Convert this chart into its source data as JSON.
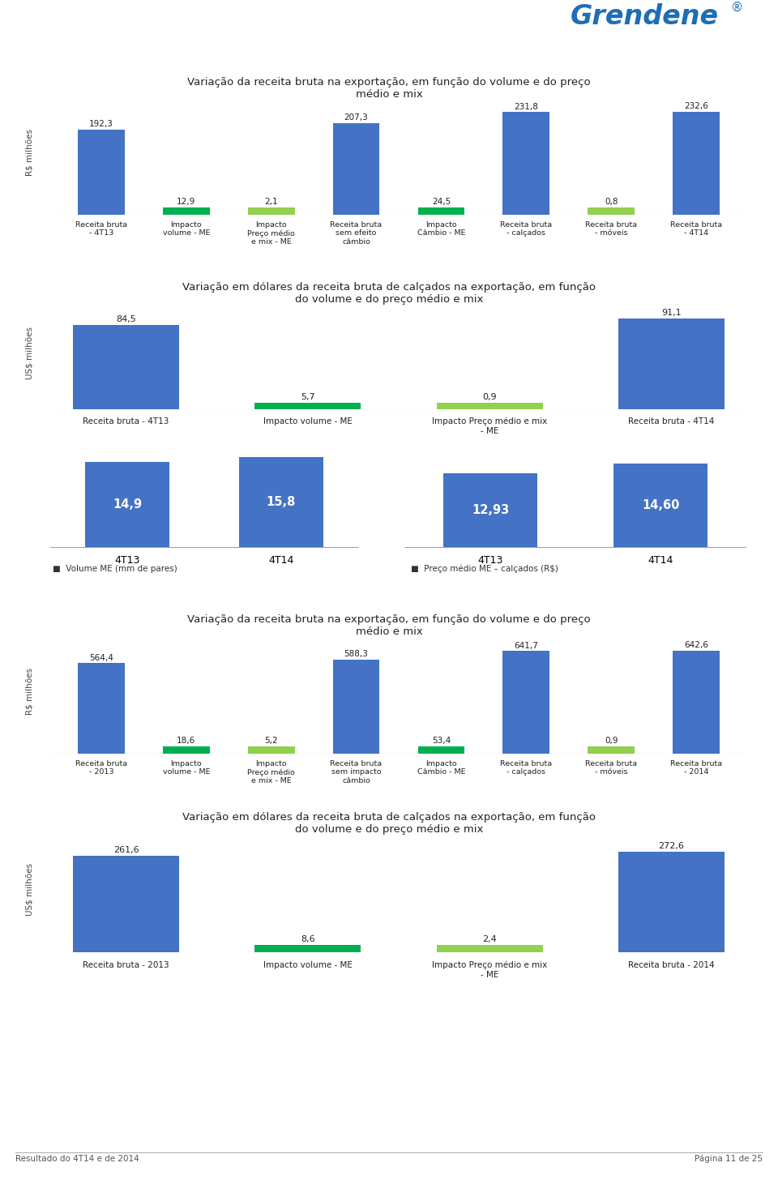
{
  "header_bar_color": "#1f6db5",
  "bg_color": "#ffffff",
  "bar_blue": "#4472c4",
  "bar_green": "#00b050",
  "bar_light_green": "#92d050",
  "chart1": {
    "title": "Variação da receita bruta na exportação, em função do volume e do preço\nmédio e mix",
    "ylabel": "R$ milhões",
    "categories": [
      "Receita bruta\n- 4T13",
      "Impacto\nvolume - ME",
      "Impacto\nPreço médio\ne mix - ME",
      "Receita bruta\nsem efeito\ncâmbio",
      "Impacto\nCâmbio - ME",
      "Receita bruta\n- calçados",
      "Receita bruta\n- móveis",
      "Receita bruta\n- 4T14"
    ],
    "values": [
      192.3,
      12.9,
      2.1,
      207.3,
      24.5,
      231.8,
      0.8,
      232.6
    ],
    "bar_types": [
      "blue",
      "green",
      "light_green",
      "blue",
      "green",
      "blue",
      "light_green",
      "blue"
    ],
    "labels": [
      "192,3",
      "12,9",
      "2,1",
      "207,3",
      "24,5",
      "231,8",
      "0,8",
      "232,6"
    ]
  },
  "chart2": {
    "title": "Variação em dólares da receita bruta de calçados na exportação, em função\ndo volume e do preço médio e mix",
    "ylabel": "US$ milhões",
    "categories": [
      "Receita bruta - 4T13",
      "Impacto volume - ME",
      "Impacto Preço médio e mix\n- ME",
      "Receita bruta - 4T14"
    ],
    "values": [
      84.5,
      5.7,
      0.9,
      91.1
    ],
    "bar_types": [
      "blue",
      "green",
      "light_green",
      "blue"
    ],
    "labels": [
      "84,5",
      "5,7",
      "0,9",
      "91,1"
    ]
  },
  "chart3_left": {
    "categories": [
      "4T13",
      "4T14"
    ],
    "values": [
      14.9,
      15.8
    ],
    "labels": [
      "14,9",
      "15,8"
    ],
    "legend": "Volume ME (mm de pares)"
  },
  "chart3_right": {
    "categories": [
      "4T13",
      "4T14"
    ],
    "values": [
      12.93,
      14.6
    ],
    "labels": [
      "12,93",
      "14,60"
    ],
    "legend": "Preço médio ME – calçados (R$)"
  },
  "chart4": {
    "title": "Variação da receita bruta na exportação, em função do volume e do preço\nmédio e mix",
    "ylabel": "R$ milhões",
    "categories": [
      "Receita bruta\n- 2013",
      "Impacto\nvolume - ME",
      "Impacto\nPreço médio\ne mix - ME",
      "Receita bruta\nsem impacto\ncâmbio",
      "Impacto\nCâmbio - ME",
      "Receita bruta\n- calçados",
      "Receita bruta\n- móveis",
      "Receita bruta\n- 2014"
    ],
    "values": [
      564.4,
      18.6,
      5.2,
      588.3,
      53.4,
      641.7,
      0.9,
      642.6
    ],
    "bar_types": [
      "blue",
      "green",
      "light_green",
      "blue",
      "green",
      "blue",
      "light_green",
      "blue"
    ],
    "labels": [
      "564,4",
      "18,6",
      "5,2",
      "588,3",
      "53,4",
      "641,7",
      "0,9",
      "642,6"
    ]
  },
  "chart5": {
    "title": "Variação em dólares da receita bruta de calçados na exportação, em função\ndo volume e do preço médio e mix",
    "ylabel": "US$ milhões",
    "categories": [
      "Receita bruta - 2013",
      "Impacto volume - ME",
      "Impacto Preço médio e mix\n- ME",
      "Receita bruta - 2014"
    ],
    "values": [
      261.6,
      8.6,
      2.4,
      272.6
    ],
    "bar_types": [
      "blue",
      "green",
      "light_green",
      "blue"
    ],
    "labels": [
      "261,6",
      "8,6",
      "2,4",
      "272,6"
    ]
  },
  "footer_left": "Resultado do 4T14 e de 2014",
  "footer_right": "Página 11 de 25"
}
